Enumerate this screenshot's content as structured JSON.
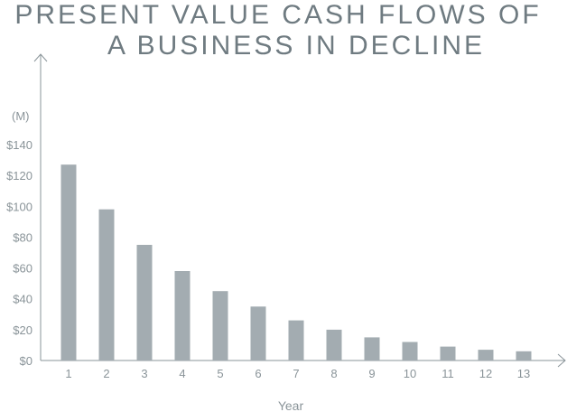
{
  "chart_data": {
    "type": "bar",
    "title_line1": "PRESENT VALUE CASH FLOWS OF",
    "title_line2": "A BUSINESS IN DECLINE",
    "unit_label": "(M)",
    "xlabel": "Year",
    "ylabel": "",
    "categories": [
      "1",
      "2",
      "3",
      "4",
      "5",
      "6",
      "7",
      "8",
      "9",
      "10",
      "11",
      "12",
      "13"
    ],
    "values": [
      127,
      98,
      75,
      58,
      45,
      35,
      26,
      20,
      15,
      12,
      9,
      7,
      6
    ],
    "yticks": [
      0,
      20,
      40,
      60,
      80,
      100,
      120,
      140
    ],
    "ytick_labels": [
      "$0",
      "$20",
      "$40",
      "$60",
      "$80",
      "$100",
      "$120",
      "$140"
    ],
    "ylim": [
      0,
      140
    ],
    "grid": false,
    "bar_color": "#a3acb1",
    "axis_color": "#8a9499"
  }
}
